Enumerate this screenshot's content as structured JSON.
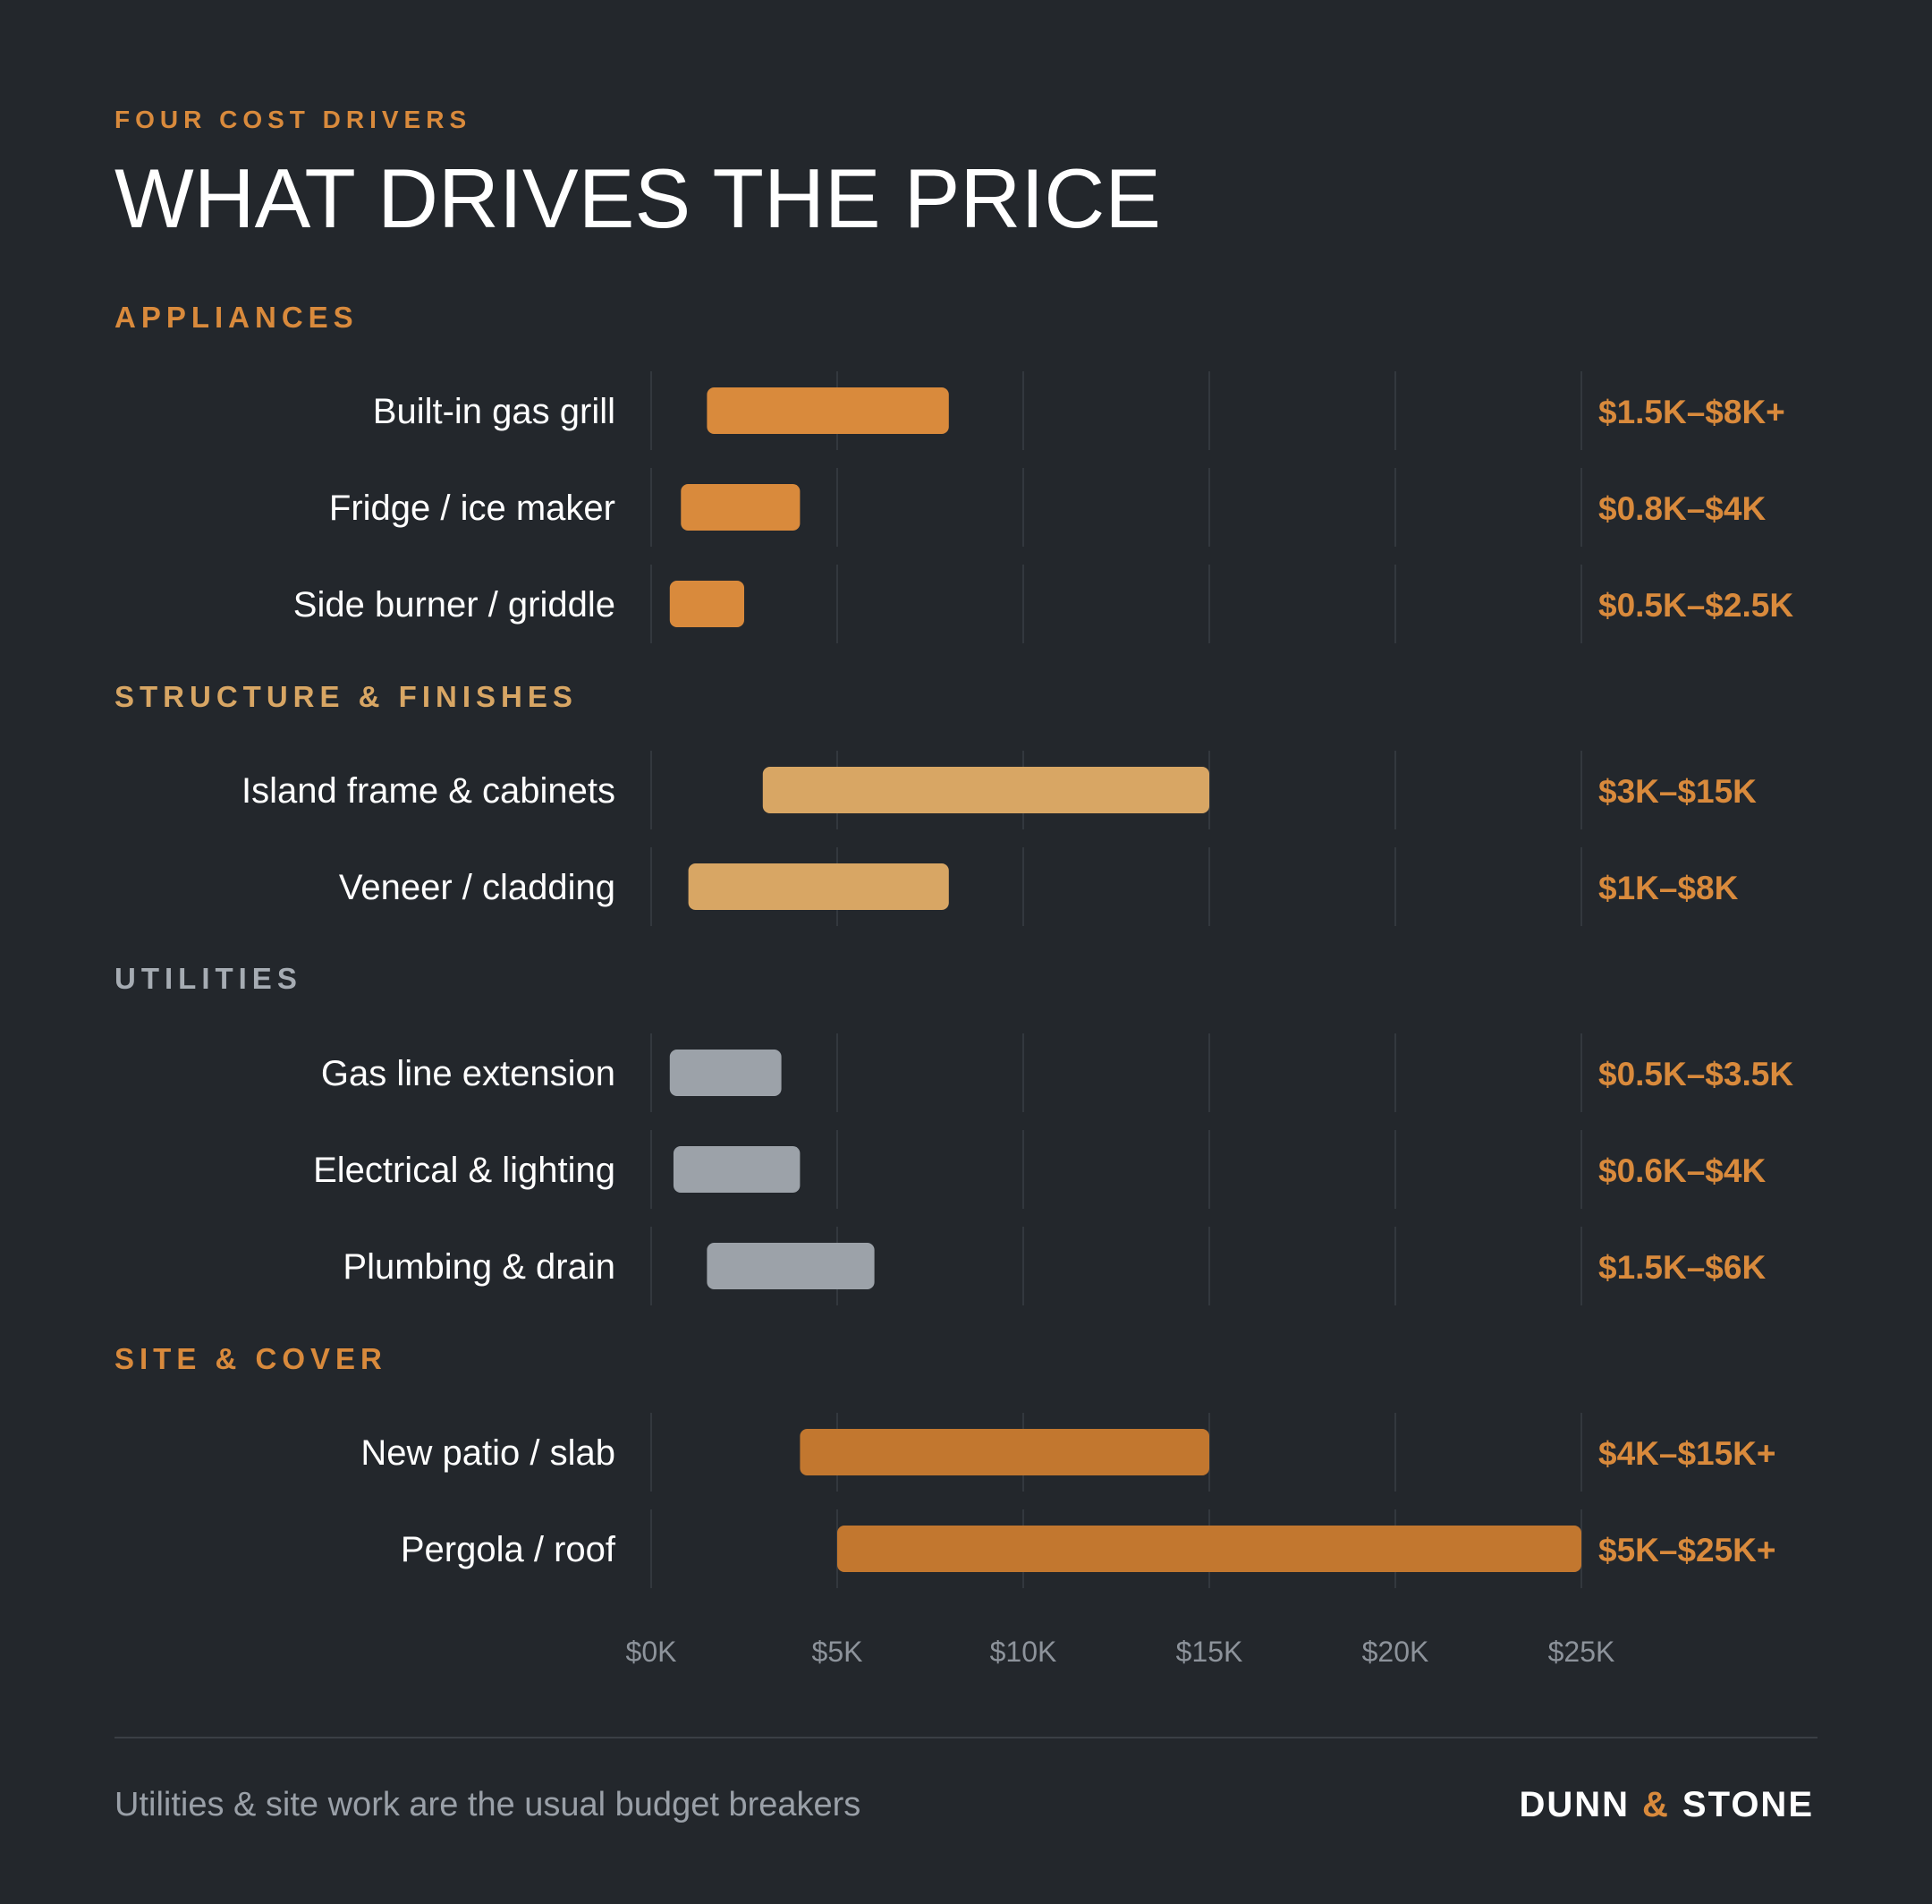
{
  "header": {
    "kicker": "FOUR COST DRIVERS",
    "title": "WHAT DRIVES THE PRICE"
  },
  "colors": {
    "background": "#23272c",
    "accent": "#d98a3c",
    "accent_light": "#d8a664",
    "utility_gray": "#9ca2a9",
    "site_orange": "#c2772f",
    "grid": "#33383e",
    "section_gray": "#a6acb3"
  },
  "chart_data": {
    "type": "bar",
    "orientation": "horizontal-range",
    "xlabel": "",
    "ylabel": "",
    "xlim": [
      0,
      25
    ],
    "x_unit": "$K",
    "ticks": [
      "$0K",
      "$5K",
      "$10K",
      "$15K",
      "$20K",
      "$25K"
    ],
    "grid": true,
    "groups": [
      {
        "name": "APPLIANCES",
        "color": "#d98a3c",
        "label_color": "#d98a3c",
        "items": [
          {
            "label": "Built-in gas grill",
            "low": 1.5,
            "high": 8,
            "range_label": "$1.5K–$8K+"
          },
          {
            "label": "Fridge / ice maker",
            "low": 0.8,
            "high": 4,
            "range_label": "$0.8K–$4K"
          },
          {
            "label": "Side burner / griddle",
            "low": 0.5,
            "high": 2.5,
            "range_label": "$0.5K–$2.5K"
          }
        ]
      },
      {
        "name": "STRUCTURE & FINISHES",
        "color": "#d8a664",
        "label_color": "#d8a664",
        "items": [
          {
            "label": "Island frame & cabinets",
            "low": 3,
            "high": 15,
            "range_label": "$3K–$15K"
          },
          {
            "label": "Veneer / cladding",
            "low": 1,
            "high": 8,
            "range_label": "$1K–$8K"
          }
        ]
      },
      {
        "name": "UTILITIES",
        "color": "#9ca2a9",
        "label_color": "#a6acb3",
        "items": [
          {
            "label": "Gas line extension",
            "low": 0.5,
            "high": 3.5,
            "range_label": "$0.5K–$3.5K"
          },
          {
            "label": "Electrical & lighting",
            "low": 0.6,
            "high": 4,
            "range_label": "$0.6K–$4K"
          },
          {
            "label": "Plumbing & drain",
            "low": 1.5,
            "high": 6,
            "range_label": "$1.5K–$6K"
          }
        ]
      },
      {
        "name": "SITE & COVER",
        "color": "#c2772f",
        "label_color": "#d98a3c",
        "items": [
          {
            "label": "New patio / slab",
            "low": 4,
            "high": 15,
            "range_label": "$4K–$15K+"
          },
          {
            "label": "Pergola / roof",
            "low": 5,
            "high": 25,
            "range_label": "$5K–$25K+"
          }
        ]
      }
    ]
  },
  "footer": {
    "note": "Utilities & site work are the usual budget breakers",
    "brand_left": "DUNN",
    "brand_amp": "&",
    "brand_right": "STONE"
  }
}
